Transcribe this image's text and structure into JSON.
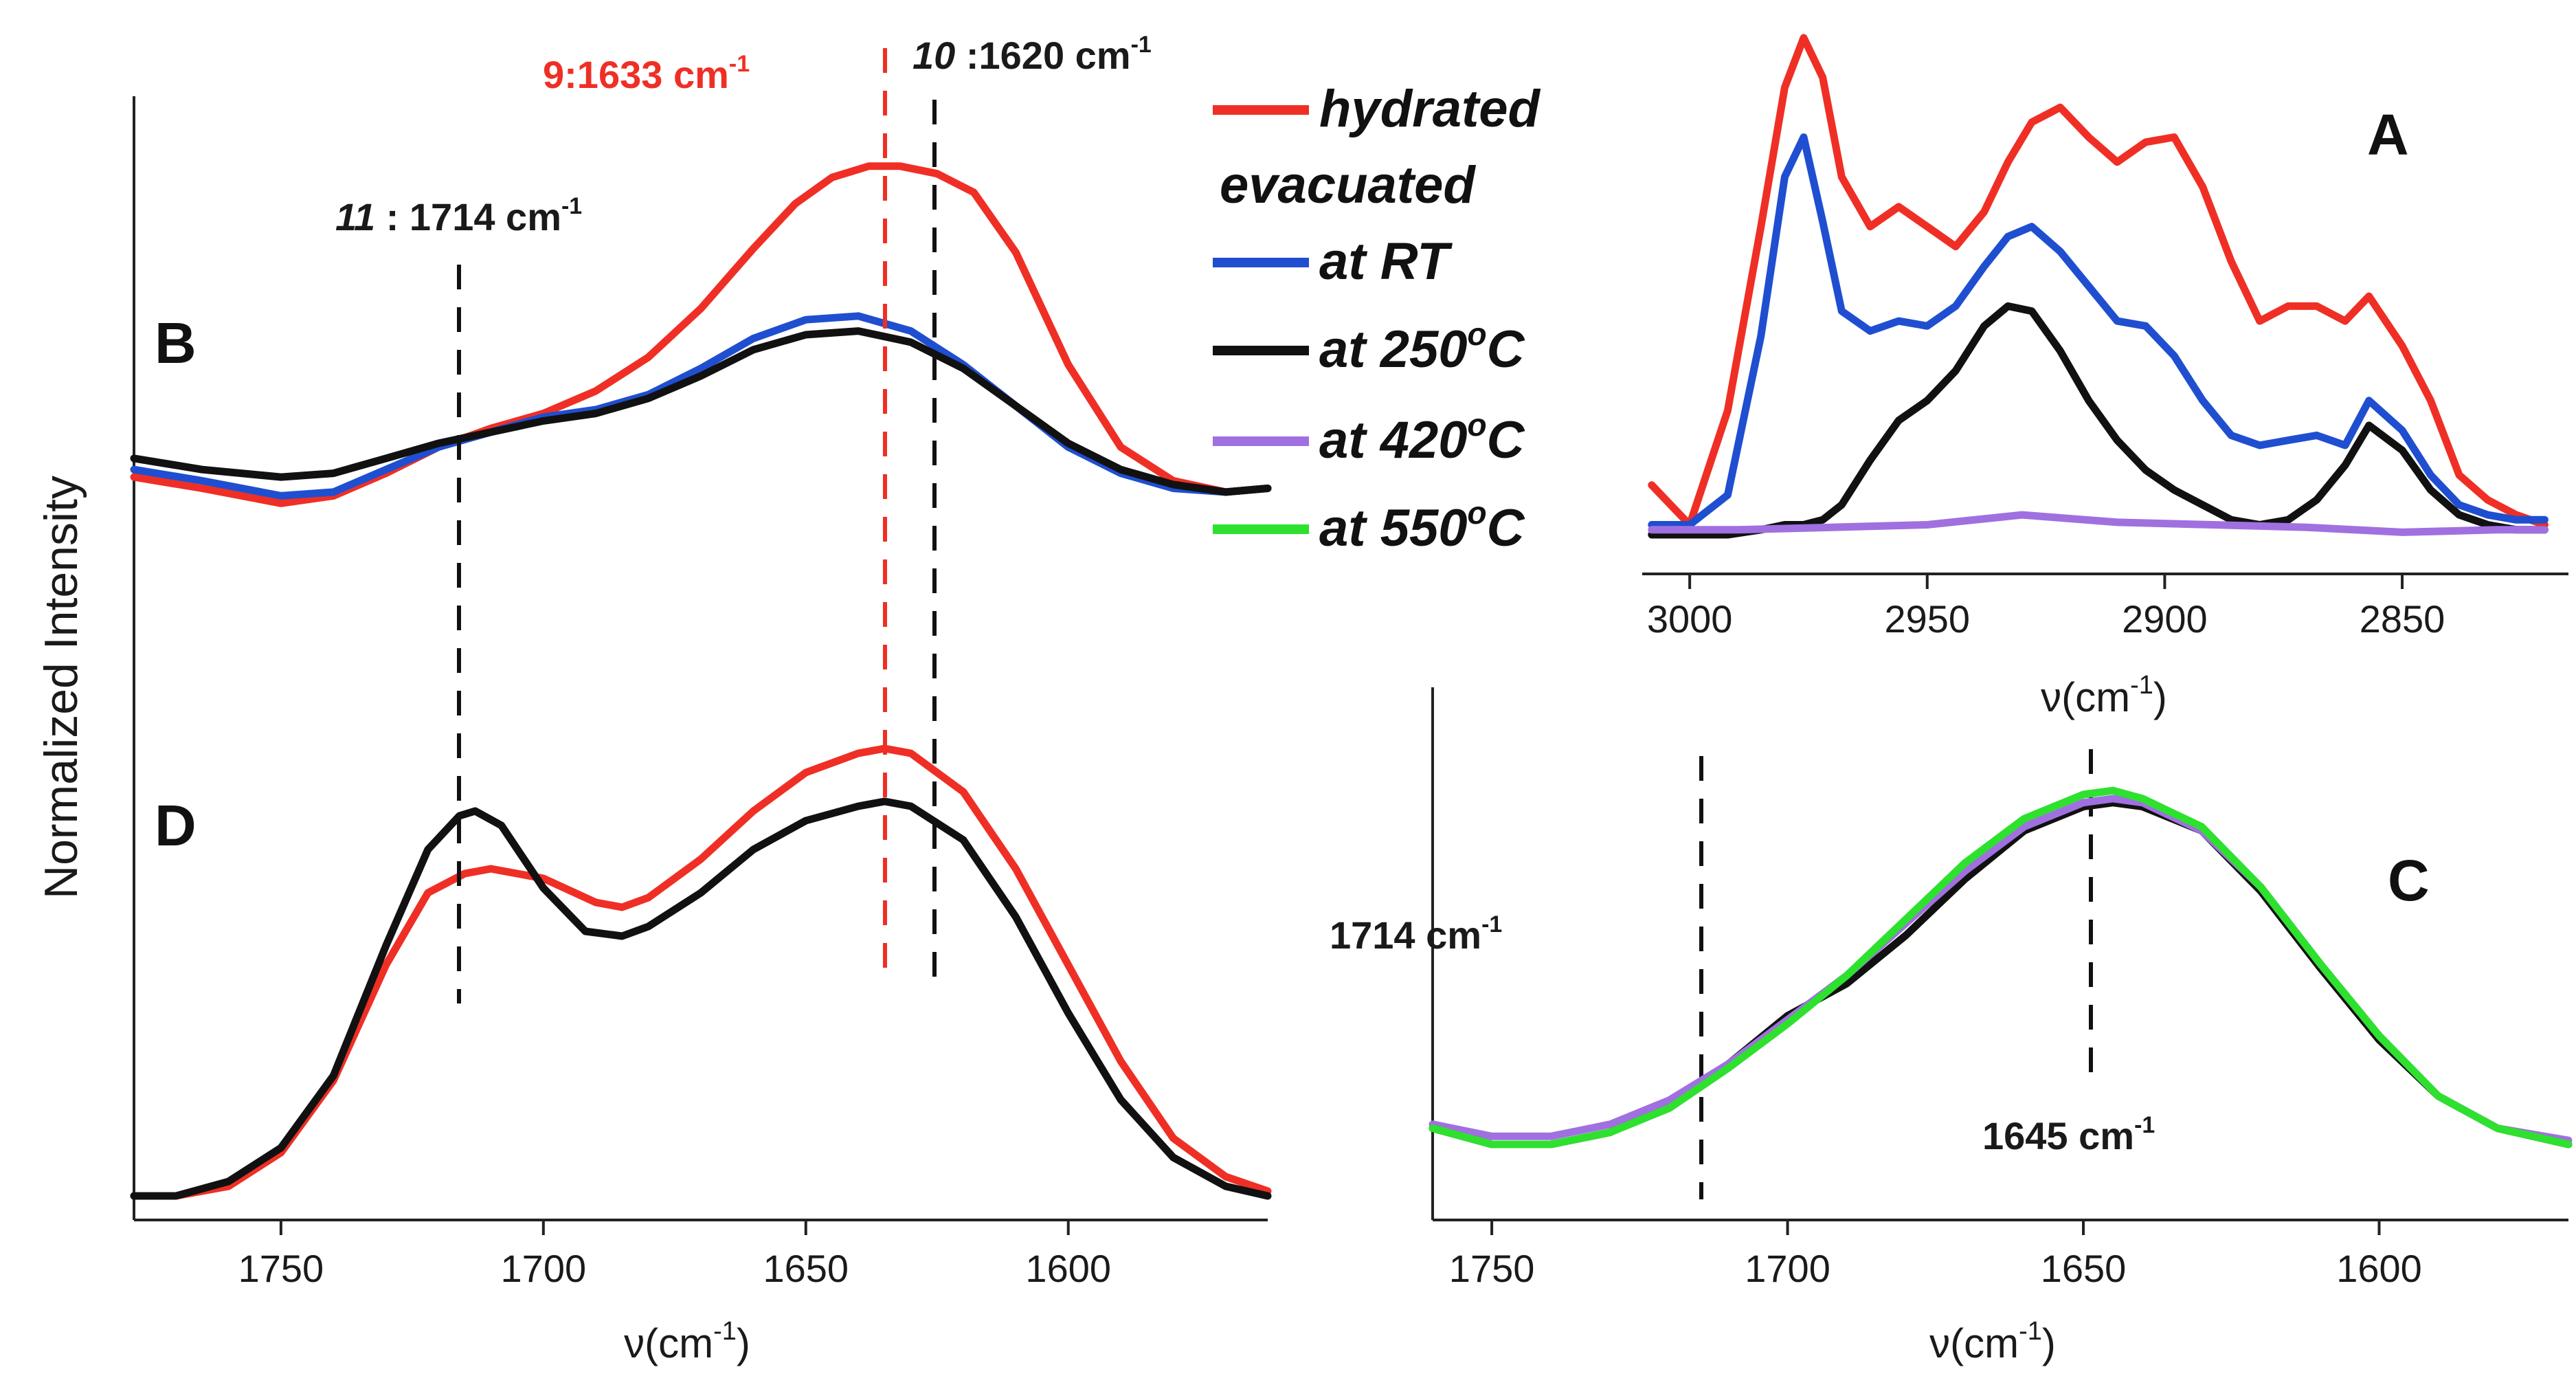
{
  "colors": {
    "hydrated": "#ef2f25",
    "at_rt": "#1f4fd0",
    "at_250": "#111111",
    "at_420": "#a070e0",
    "at_550": "#2ee12e"
  },
  "y_label": "Normalized Intensity",
  "legend": {
    "items": [
      {
        "key": "hydrated",
        "label": "hydrated",
        "color": "#ef2f25"
      },
      {
        "key": "at_rt",
        "label": "at RT",
        "color": "#1f4fd0"
      },
      {
        "key": "at_250",
        "label": "at 250",
        "sup": "o",
        "suffix": "C",
        "color": "#111111"
      },
      {
        "key": "at_420",
        "label": "at 420",
        "sup": "o",
        "suffix": "C",
        "color": "#a070e0"
      },
      {
        "key": "at_550",
        "label": "at 550",
        "sup": "o",
        "suffix": "C",
        "color": "#2ee12e"
      }
    ],
    "subheader": "evacuated"
  },
  "chart_data": [
    {
      "panel": "A",
      "type": "line",
      "xlabel": "ν(cm",
      "xlabel_sup": "-1",
      "xlabel_close": ")",
      "xlim": [
        3010,
        2815
      ],
      "ylim": [
        0,
        1
      ],
      "xticks": [
        3000,
        2950,
        2900,
        2850
      ],
      "series": [
        {
          "name": "hydrated",
          "x": [
            3008,
            3000,
            2992,
            2985,
            2980,
            2976,
            2972,
            2968,
            2962,
            2956,
            2950,
            2944,
            2938,
            2933,
            2928,
            2922,
            2916,
            2910,
            2904,
            2898,
            2892,
            2886,
            2880,
            2874,
            2868,
            2862,
            2857,
            2850,
            2844,
            2838,
            2832,
            2826,
            2820
          ],
          "y": [
            0.1,
            0.02,
            0.25,
            0.62,
            0.9,
            1.0,
            0.92,
            0.72,
            0.62,
            0.66,
            0.62,
            0.58,
            0.65,
            0.75,
            0.83,
            0.86,
            0.8,
            0.75,
            0.79,
            0.8,
            0.7,
            0.55,
            0.43,
            0.46,
            0.46,
            0.43,
            0.48,
            0.38,
            0.27,
            0.12,
            0.07,
            0.04,
            0.02
          ]
        },
        {
          "name": "at RT",
          "x": [
            3008,
            3000,
            2992,
            2985,
            2980,
            2976,
            2972,
            2968,
            2962,
            2956,
            2950,
            2944,
            2938,
            2933,
            2928,
            2922,
            2916,
            2910,
            2904,
            2898,
            2892,
            2886,
            2880,
            2874,
            2868,
            2862,
            2857,
            2850,
            2844,
            2838,
            2832,
            2826,
            2820
          ],
          "y": [
            0.02,
            0.02,
            0.08,
            0.4,
            0.72,
            0.8,
            0.63,
            0.45,
            0.41,
            0.43,
            0.42,
            0.46,
            0.54,
            0.6,
            0.62,
            0.57,
            0.5,
            0.43,
            0.42,
            0.36,
            0.27,
            0.2,
            0.18,
            0.19,
            0.2,
            0.18,
            0.27,
            0.21,
            0.12,
            0.06,
            0.04,
            0.03,
            0.03
          ]
        },
        {
          "name": "at 250C",
          "x": [
            3008,
            3000,
            2992,
            2985,
            2980,
            2976,
            2972,
            2968,
            2962,
            2956,
            2950,
            2944,
            2938,
            2933,
            2928,
            2922,
            2916,
            2910,
            2904,
            2898,
            2892,
            2886,
            2880,
            2874,
            2868,
            2862,
            2857,
            2850,
            2844,
            2838,
            2832,
            2826,
            2820
          ],
          "y": [
            0.0,
            0.0,
            0.0,
            0.01,
            0.02,
            0.02,
            0.03,
            0.06,
            0.15,
            0.23,
            0.27,
            0.33,
            0.42,
            0.46,
            0.45,
            0.37,
            0.27,
            0.19,
            0.13,
            0.09,
            0.06,
            0.03,
            0.02,
            0.03,
            0.07,
            0.14,
            0.22,
            0.17,
            0.09,
            0.04,
            0.02,
            0.01,
            0.01
          ]
        },
        {
          "name": "at 420C",
          "x": [
            3008,
            2990,
            2970,
            2950,
            2930,
            2910,
            2890,
            2870,
            2850,
            2830,
            2820
          ],
          "y": [
            0.01,
            0.01,
            0.015,
            0.02,
            0.04,
            0.025,
            0.02,
            0.015,
            0.005,
            0.01,
            0.01
          ]
        }
      ],
      "panel_label": "A"
    },
    {
      "panel": "B",
      "type": "line",
      "xlim": [
        1778,
        1562
      ],
      "ylim": [
        0,
        1
      ],
      "series": [
        {
          "name": "hydrated",
          "x": [
            1778,
            1765,
            1750,
            1740,
            1730,
            1720,
            1710,
            1700,
            1690,
            1680,
            1670,
            1660,
            1652,
            1645,
            1638,
            1632,
            1625,
            1618,
            1610,
            1600,
            1590,
            1580,
            1570,
            1562
          ],
          "y": [
            0.02,
            -0.01,
            -0.05,
            -0.03,
            0.03,
            0.1,
            0.15,
            0.19,
            0.25,
            0.34,
            0.47,
            0.63,
            0.75,
            0.82,
            0.85,
            0.85,
            0.83,
            0.78,
            0.62,
            0.32,
            0.1,
            0.01,
            -0.02,
            -0.01
          ]
        },
        {
          "name": "at RT",
          "x": [
            1778,
            1765,
            1750,
            1740,
            1730,
            1720,
            1710,
            1700,
            1690,
            1680,
            1670,
            1660,
            1650,
            1640,
            1630,
            1620,
            1610,
            1600,
            1590,
            1580,
            1570,
            1562
          ],
          "y": [
            0.04,
            0.01,
            -0.03,
            -0.02,
            0.04,
            0.1,
            0.14,
            0.18,
            0.2,
            0.24,
            0.31,
            0.39,
            0.44,
            0.45,
            0.41,
            0.32,
            0.21,
            0.1,
            0.03,
            -0.01,
            -0.02,
            -0.01
          ]
        },
        {
          "name": "at 250C",
          "x": [
            1778,
            1765,
            1750,
            1740,
            1730,
            1720,
            1710,
            1700,
            1690,
            1680,
            1670,
            1660,
            1650,
            1640,
            1630,
            1620,
            1610,
            1600,
            1590,
            1580,
            1570,
            1562
          ],
          "y": [
            0.07,
            0.04,
            0.02,
            0.03,
            0.07,
            0.11,
            0.14,
            0.17,
            0.19,
            0.23,
            0.29,
            0.36,
            0.4,
            0.41,
            0.38,
            0.31,
            0.21,
            0.11,
            0.04,
            0.0,
            -0.02,
            -0.01
          ]
        }
      ],
      "panel_label": "B"
    },
    {
      "panel": "D",
      "type": "line",
      "xlabel": "ν(cm",
      "xlabel_sup": "-1",
      "xlabel_close": ")",
      "xlim": [
        1778,
        1562
      ],
      "ylim": [
        0,
        1
      ],
      "xticks": [
        1750,
        1700,
        1650,
        1600
      ],
      "series": [
        {
          "name": "hydrated",
          "x": [
            1778,
            1770,
            1760,
            1750,
            1740,
            1730,
            1722,
            1715,
            1710,
            1700,
            1690,
            1685,
            1680,
            1670,
            1660,
            1650,
            1640,
            1635,
            1630,
            1620,
            1610,
            1600,
            1590,
            1580,
            1570,
            1562
          ],
          "y": [
            0.0,
            0.0,
            0.02,
            0.09,
            0.24,
            0.48,
            0.63,
            0.67,
            0.68,
            0.66,
            0.61,
            0.6,
            0.62,
            0.7,
            0.8,
            0.88,
            0.92,
            0.93,
            0.92,
            0.84,
            0.68,
            0.48,
            0.28,
            0.12,
            0.04,
            0.01
          ]
        },
        {
          "name": "at 250C",
          "x": [
            1778,
            1770,
            1760,
            1750,
            1740,
            1730,
            1722,
            1716,
            1713,
            1708,
            1700,
            1692,
            1685,
            1680,
            1670,
            1660,
            1650,
            1640,
            1635,
            1630,
            1620,
            1610,
            1600,
            1590,
            1580,
            1570,
            1562
          ],
          "y": [
            0.0,
            0.0,
            0.03,
            0.1,
            0.25,
            0.52,
            0.72,
            0.79,
            0.8,
            0.77,
            0.64,
            0.55,
            0.54,
            0.56,
            0.63,
            0.72,
            0.78,
            0.81,
            0.82,
            0.81,
            0.74,
            0.58,
            0.38,
            0.2,
            0.08,
            0.02,
            0.0
          ]
        }
      ],
      "panel_label": "D"
    },
    {
      "panel": "C",
      "type": "line",
      "xlabel": "ν(cm",
      "xlabel_sup": "-1",
      "xlabel_close": ")",
      "xlim": [
        1760,
        1568
      ],
      "ylim": [
        0,
        1
      ],
      "xticks": [
        1750,
        1700,
        1650,
        1600
      ],
      "series": [
        {
          "name": "at 250C",
          "x": [
            1760,
            1750,
            1740,
            1730,
            1720,
            1710,
            1700,
            1690,
            1680,
            1670,
            1660,
            1650,
            1645,
            1640,
            1630,
            1620,
            1610,
            1600,
            1590,
            1580,
            1568
          ],
          "y": [
            0.04,
            0.0,
            0.0,
            0.03,
            0.1,
            0.2,
            0.32,
            0.4,
            0.52,
            0.66,
            0.78,
            0.84,
            0.85,
            0.84,
            0.78,
            0.63,
            0.44,
            0.26,
            0.12,
            0.04,
            0.0
          ]
        },
        {
          "name": "at 420C",
          "x": [
            1760,
            1750,
            1740,
            1730,
            1720,
            1710,
            1700,
            1690,
            1680,
            1670,
            1660,
            1650,
            1645,
            1640,
            1630,
            1620,
            1610,
            1600,
            1590,
            1580,
            1568
          ],
          "y": [
            0.05,
            0.02,
            0.02,
            0.05,
            0.11,
            0.2,
            0.31,
            0.42,
            0.55,
            0.68,
            0.79,
            0.85,
            0.86,
            0.85,
            0.78,
            0.64,
            0.45,
            0.27,
            0.12,
            0.04,
            0.01
          ]
        },
        {
          "name": "at 550C",
          "x": [
            1760,
            1750,
            1740,
            1730,
            1720,
            1710,
            1700,
            1690,
            1680,
            1670,
            1660,
            1650,
            1645,
            1640,
            1630,
            1620,
            1610,
            1600,
            1590,
            1580,
            1568
          ],
          "y": [
            0.04,
            0.0,
            0.0,
            0.03,
            0.09,
            0.19,
            0.3,
            0.42,
            0.56,
            0.7,
            0.81,
            0.87,
            0.88,
            0.86,
            0.79,
            0.64,
            0.45,
            0.27,
            0.12,
            0.04,
            0.0
          ]
        }
      ],
      "panel_label": "C"
    }
  ],
  "annotations": {
    "peak9_num": "9",
    "peak9_text": ":1633 cm",
    "peak9_sup": "-1",
    "peak10_num": "10",
    "peak10_text": " :1620 cm",
    "peak10_sup": "-1",
    "peak11_num": "11",
    "peak11_text": " : 1714 cm",
    "peak11_sup": "-1",
    "c1714_text": "1714 cm",
    "c1714_sup": "-1",
    "c1645_text": "1645 cm",
    "c1645_sup": "-1"
  }
}
